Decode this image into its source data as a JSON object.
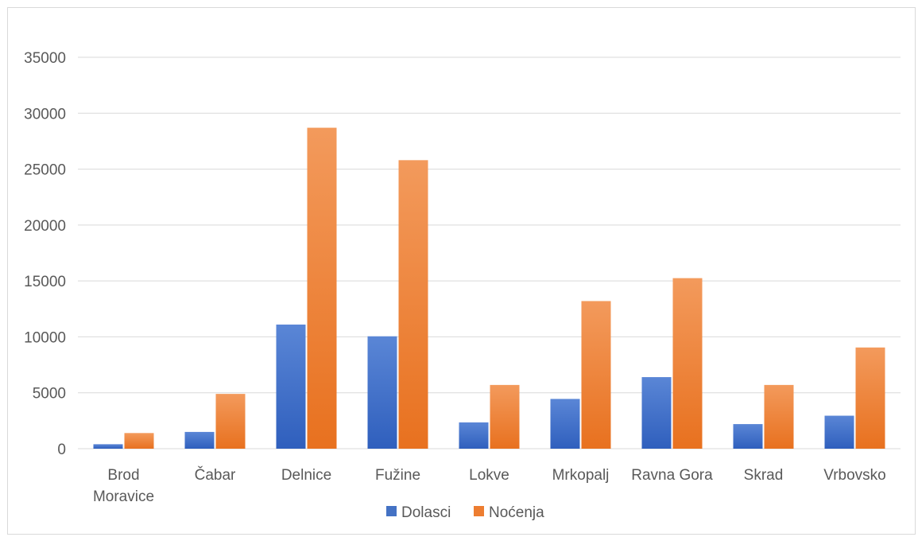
{
  "chart_data": {
    "type": "bar",
    "title": "",
    "xlabel": "",
    "ylabel": "",
    "categories": [
      "Brod Moravice",
      "Čabar",
      "Delnice",
      "Fužine",
      "Lokve",
      "Mrkopalj",
      "Ravna Gora",
      "Skrad",
      "Vrbovsko"
    ],
    "category_lines": [
      [
        "Brod",
        "Moravice"
      ],
      [
        "Čabar"
      ],
      [
        "Delnice"
      ],
      [
        "Fužine"
      ],
      [
        "Lokve"
      ],
      [
        "Mrkopalj"
      ],
      [
        "Ravna Gora"
      ],
      [
        "Skrad"
      ],
      [
        "Vrbovsko"
      ]
    ],
    "series": [
      {
        "name": "Dolasci",
        "color": "#4472c4",
        "values": [
          400,
          1500,
          11100,
          10050,
          2350,
          4450,
          6400,
          2200,
          2950
        ]
      },
      {
        "name": "Noćenja",
        "color": "#ed7d31",
        "values": [
          1400,
          4900,
          28700,
          25800,
          5700,
          13200,
          15250,
          5700,
          9050
        ]
      }
    ],
    "ylim": [
      0,
      35000
    ],
    "y_ticks": [
      "0",
      "5000",
      "10000",
      "15000",
      "20000",
      "25000",
      "30000",
      "35000"
    ],
    "grid": true,
    "legend_position": "bottom"
  }
}
